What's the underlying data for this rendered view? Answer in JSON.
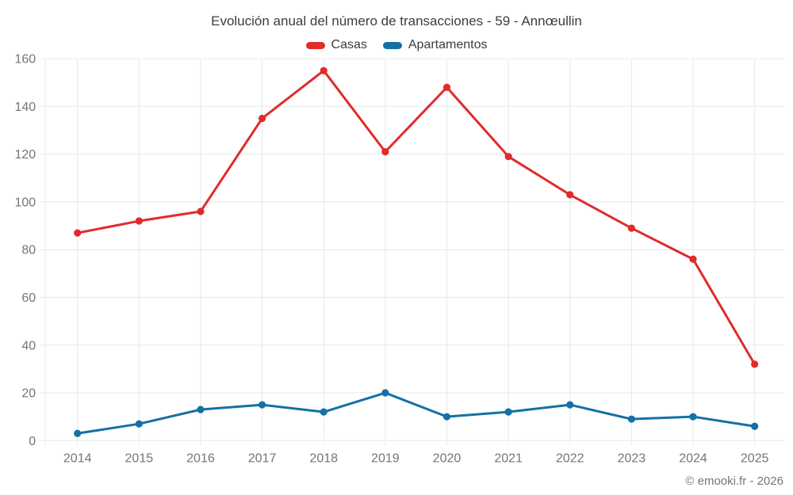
{
  "chart_data": {
    "type": "line",
    "title": "Evolución anual del número de transacciones - 59 - Annœullin",
    "categories": [
      "2014",
      "2015",
      "2016",
      "2017",
      "2018",
      "2019",
      "2020",
      "2021",
      "2022",
      "2023",
      "2024",
      "2025"
    ],
    "series": [
      {
        "name": "Casas",
        "color": "#e02b2b",
        "values": [
          87,
          92,
          96,
          135,
          155,
          121,
          148,
          119,
          103,
          89,
          76,
          32
        ]
      },
      {
        "name": "Apartamentos",
        "color": "#1570a5",
        "values": [
          3,
          7,
          13,
          15,
          12,
          20,
          10,
          12,
          15,
          9,
          10,
          6
        ]
      }
    ],
    "xlabel": "",
    "ylabel": "",
    "ylim": [
      0,
      160
    ],
    "ytick_step": 20,
    "yticks": [
      0,
      20,
      40,
      60,
      80,
      100,
      120,
      140,
      160
    ],
    "grid": true,
    "grid_color": "#e8e8e8",
    "tick_color": "#757575",
    "legend_position": "top",
    "footnote": "© emooki.fr - 2026"
  }
}
